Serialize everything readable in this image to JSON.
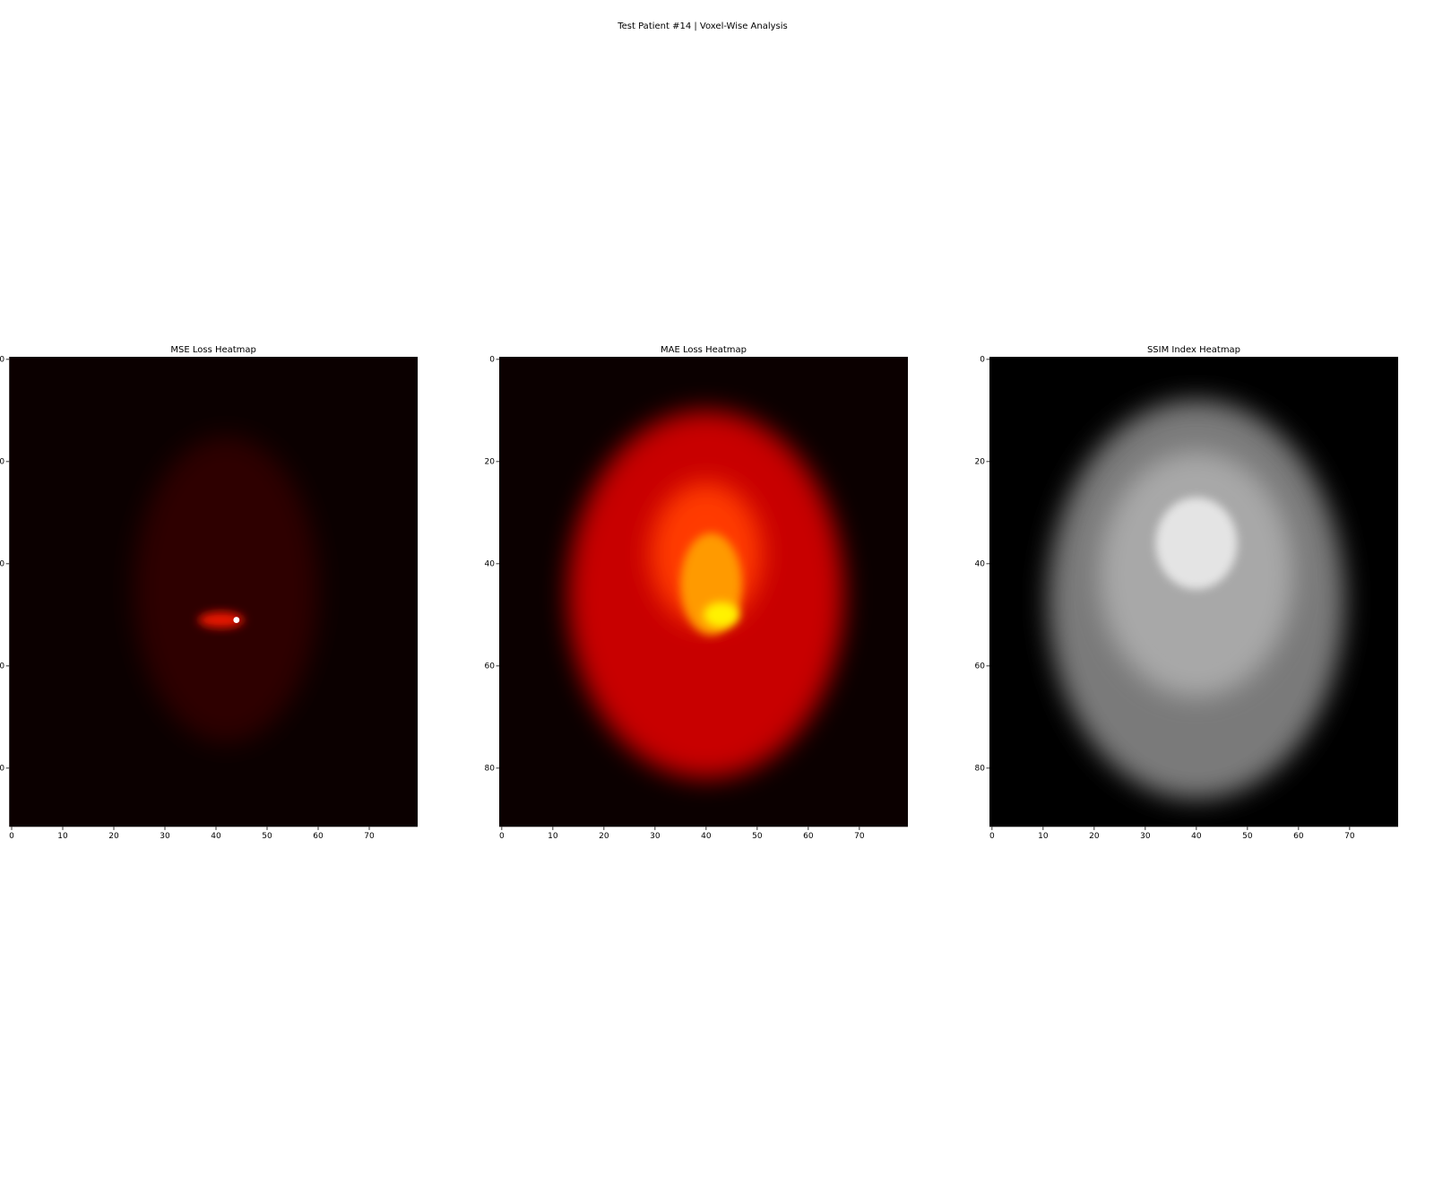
{
  "title": "Test Patient #14 | Voxel-Wise Analysis",
  "chart_data": [
    {
      "type": "heatmap",
      "title": "MSE Loss Heatmap",
      "colormap": "hot",
      "xlim": [
        -0.5,
        79.5
      ],
      "ylim": [
        91.5,
        -0.5
      ],
      "xticks": [
        0,
        10,
        20,
        30,
        40,
        50,
        60,
        70
      ],
      "yticks": [
        0,
        20,
        40,
        60,
        80
      ]
    },
    {
      "type": "heatmap",
      "title": "MAE Loss Heatmap",
      "colormap": "hot",
      "xlim": [
        -0.5,
        79.5
      ],
      "ylim": [
        91.5,
        -0.5
      ],
      "xticks": [
        0,
        10,
        20,
        30,
        40,
        50,
        60,
        70
      ],
      "yticks": [
        0,
        20,
        40,
        60,
        80
      ]
    },
    {
      "type": "heatmap",
      "title": "SSIM Index Heatmap",
      "colormap": "gray",
      "xlim": [
        -0.5,
        79.5
      ],
      "ylim": [
        91.5,
        -0.5
      ],
      "xticks": [
        0,
        10,
        20,
        30,
        40,
        50,
        60,
        70
      ],
      "yticks": [
        0,
        20,
        40,
        60,
        80
      ]
    }
  ]
}
